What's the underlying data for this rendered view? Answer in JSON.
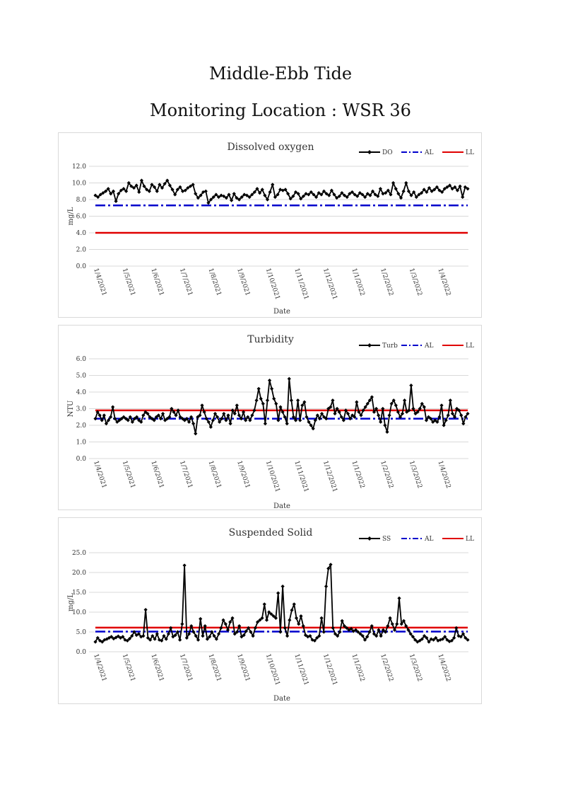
{
  "page": {
    "title": "Middle-Ebb Tide",
    "subtitle": "Monitoring Location : WSR 36"
  },
  "x_ticks": [
    "1/4/2021",
    "1/5/2021",
    "1/6/2021",
    "1/7/2021",
    "1/8/2021",
    "1/9/2021",
    "1/10/2021",
    "1/11/2021",
    "1/12/2021",
    "1/1/2022",
    "1/2/2022",
    "1/3/2022",
    "1/4/2022"
  ],
  "colors": {
    "data": "#000000",
    "al": "#0000cc",
    "ll": "#e00000",
    "grid": "#d9d9d9"
  },
  "chart_data": [
    {
      "type": "line",
      "title": "Dissolved oxygen",
      "xlabel": "Date",
      "ylabel": "mg/L",
      "ylim": [
        0,
        12
      ],
      "yticks": [
        "0.0",
        "2.0",
        "4.0",
        "6.0",
        "8.0",
        "10.0",
        "12.0"
      ],
      "grid": true,
      "legend": "top-right",
      "x_range": [
        "1/4/2021",
        "30/4/2022"
      ],
      "series": [
        {
          "name": "DO",
          "style": "black line with diamond markers",
          "values": [
            8.5,
            8.3,
            8.6,
            8.8,
            9.0,
            9.3,
            8.7,
            9.0,
            7.8,
            8.7,
            9.1,
            9.3,
            9.0,
            10.0,
            9.6,
            9.4,
            9.7,
            8.9,
            10.3,
            9.6,
            9.2,
            9.0,
            9.8,
            9.5,
            9.0,
            9.8,
            9.4,
            9.9,
            10.3,
            9.7,
            9.2,
            8.6,
            9.2,
            9.5,
            9.0,
            9.1,
            9.4,
            9.6,
            9.8,
            8.7,
            8.2,
            8.5,
            8.9,
            9.0,
            7.6,
            8.0,
            8.3,
            8.6,
            8.3,
            8.5,
            8.4,
            8.2,
            8.6,
            7.9,
            8.7,
            8.2,
            8.0,
            8.3,
            8.6,
            8.5,
            8.3,
            8.6,
            8.9,
            9.3,
            8.8,
            9.2,
            8.5,
            8.0,
            8.9,
            9.8,
            8.3,
            8.6,
            9.2,
            9.1,
            9.2,
            8.7,
            8.1,
            8.4,
            8.9,
            8.7,
            8.1,
            8.4,
            8.7,
            8.6,
            8.9,
            8.6,
            8.3,
            8.8,
            8.6,
            9.0,
            8.7,
            8.5,
            9.1,
            8.6,
            8.2,
            8.4,
            8.8,
            8.5,
            8.3,
            8.7,
            8.9,
            8.6,
            8.4,
            8.8,
            8.6,
            8.3,
            8.7,
            8.5,
            9.0,
            8.6,
            8.4,
            9.3,
            8.7,
            8.8,
            9.1,
            8.6,
            10.0,
            9.3,
            8.7,
            8.2,
            9.0,
            10.0,
            9.0,
            8.5,
            8.9,
            8.3,
            8.6,
            8.8,
            9.2,
            8.9,
            9.4,
            9.0,
            9.2,
            9.5,
            9.1,
            8.9,
            9.3,
            9.5,
            9.7,
            9.3,
            9.5,
            9.1,
            9.6,
            8.3,
            9.5,
            9.3
          ]
        },
        {
          "name": "AL",
          "style": "blue dash-dot",
          "values": [
            7.3,
            7.3
          ]
        },
        {
          "name": "LL",
          "style": "red solid",
          "values": [
            4.0,
            4.0
          ]
        }
      ]
    },
    {
      "type": "line",
      "title": "Turbidity",
      "xlabel": "Date",
      "ylabel": "NTU",
      "ylim": [
        0,
        6
      ],
      "yticks": [
        "0.0",
        "1.0",
        "2.0",
        "3.0",
        "4.0",
        "5.0",
        "6.0"
      ],
      "grid": true,
      "legend": "top-right",
      "x_range": [
        "1/4/2021",
        "30/4/2022"
      ],
      "series": [
        {
          "name": "Turb",
          "style": "black line with diamond markers",
          "values": [
            2.4,
            2.8,
            2.6,
            2.3,
            2.6,
            2.1,
            2.3,
            2.5,
            3.1,
            2.4,
            2.2,
            2.3,
            2.4,
            2.5,
            2.4,
            2.3,
            2.5,
            2.2,
            2.4,
            2.5,
            2.3,
            2.2,
            2.6,
            2.8,
            2.7,
            2.5,
            2.4,
            2.3,
            2.5,
            2.6,
            2.4,
            2.7,
            2.3,
            2.4,
            2.5,
            3.0,
            2.8,
            2.6,
            2.9,
            2.5,
            2.4,
            2.3,
            2.4,
            2.2,
            2.5,
            2.1,
            1.5,
            2.5,
            2.6,
            3.2,
            2.8,
            2.4,
            2.2,
            1.9,
            2.3,
            2.7,
            2.5,
            2.2,
            2.4,
            2.7,
            2.3,
            2.6,
            2.1,
            2.9,
            2.7,
            3.2,
            2.6,
            2.4,
            2.8,
            2.3,
            2.5,
            2.3,
            2.6,
            2.9,
            3.5,
            4.2,
            3.6,
            3.3,
            2.1,
            3.5,
            4.7,
            4.2,
            3.6,
            3.3,
            2.3,
            3.1,
            2.8,
            2.5,
            2.1,
            4.8,
            3.5,
            2.5,
            2.3,
            3.5,
            2.3,
            3.2,
            3.4,
            2.5,
            2.2,
            2.0,
            1.8,
            2.3,
            2.6,
            2.4,
            2.7,
            2.5,
            2.4,
            3.0,
            3.1,
            3.5,
            2.7,
            3.0,
            2.8,
            2.5,
            2.3,
            2.9,
            2.7,
            2.4,
            2.6,
            2.5,
            3.4,
            2.8,
            2.6,
            2.9,
            3.1,
            3.3,
            3.5,
            3.7,
            2.8,
            3.0,
            2.6,
            2.2,
            3.0,
            2.0,
            1.6,
            2.6,
            3.3,
            3.5,
            3.2,
            2.8,
            2.5,
            2.7,
            3.5,
            2.8,
            2.9,
            4.4,
            3.0,
            2.7,
            2.8,
            3.0,
            3.3,
            3.1,
            2.3,
            2.5,
            2.4,
            2.2,
            2.3,
            2.2,
            2.5,
            3.2,
            2.0,
            2.3,
            2.6,
            3.5,
            2.7,
            2.5,
            3.0,
            2.9,
            2.6,
            2.1,
            2.5,
            2.7
          ]
        },
        {
          "name": "AL",
          "style": "blue dash-dot",
          "values": [
            2.4,
            2.4
          ]
        },
        {
          "name": "LL",
          "style": "red solid",
          "values": [
            2.9,
            2.9
          ]
        }
      ]
    },
    {
      "type": "line",
      "title": "Suspended Solid",
      "xlabel": "Date",
      "ylabel": "mg/L",
      "ylim": [
        0,
        25
      ],
      "yticks": [
        "0.0",
        "5.0",
        "10.0",
        "15.0",
        "20.0",
        "25.0"
      ],
      "grid": true,
      "legend": "top-right",
      "x_range": [
        "1/4/2021",
        "30/4/2022"
      ],
      "series": [
        {
          "name": "SS",
          "style": "black line with diamond markers",
          "values": [
            2.5,
            3.5,
            2.8,
            2.5,
            3.0,
            3.2,
            3.5,
            3.8,
            3.3,
            3.6,
            3.9,
            3.5,
            3.8,
            3.0,
            2.8,
            3.3,
            4.0,
            5.0,
            4.2,
            4.5,
            3.8,
            4.0,
            10.6,
            3.5,
            3.0,
            4.0,
            3.2,
            4.5,
            3.0,
            2.8,
            4.0,
            3.2,
            4.5,
            6.0,
            3.8,
            4.2,
            5.0,
            3.0,
            7.0,
            21.8,
            3.5,
            4.5,
            6.5,
            5.0,
            4.0,
            3.0,
            8.3,
            4.0,
            6.5,
            3.2,
            3.8,
            5.0,
            4.0,
            3.2,
            4.5,
            6.0,
            8.0,
            7.0,
            5.5,
            7.5,
            8.5,
            4.5,
            5.0,
            6.5,
            3.8,
            4.2,
            5.2,
            6.0,
            5.0,
            4.0,
            6.0,
            7.5,
            8.0,
            8.5,
            12.0,
            8.0,
            10.0,
            9.5,
            9.0,
            8.5,
            14.8,
            5.0,
            16.5,
            6.0,
            4.0,
            8.0,
            10.5,
            12.0,
            8.5,
            7.0,
            9.0,
            6.5,
            4.2,
            3.8,
            4.0,
            3.0,
            2.8,
            3.5,
            4.0,
            8.5,
            5.0,
            16.5,
            21.0,
            22.0,
            6.0,
            4.5,
            4.0,
            5.0,
            7.8,
            6.5,
            6.0,
            5.5,
            5.8,
            5.2,
            5.5,
            5.0,
            4.5,
            4.0,
            3.0,
            3.8,
            5.0,
            6.5,
            4.5,
            4.0,
            5.5,
            4.0,
            5.5,
            5.0,
            6.5,
            8.5,
            7.0,
            5.5,
            7.0,
            13.5,
            7.0,
            7.8,
            6.5,
            5.5,
            4.5,
            3.8,
            3.0,
            2.5,
            2.8,
            3.2,
            4.0,
            3.5,
            2.5,
            3.2,
            3.0,
            3.5,
            2.8,
            3.0,
            3.2,
            3.8,
            3.0,
            2.6,
            2.8,
            3.5,
            6.0,
            4.0,
            3.8,
            4.5,
            3.5,
            3.0
          ]
        },
        {
          "name": "AL",
          "style": "blue dash-dot",
          "values": [
            5.1,
            5.1
          ]
        },
        {
          "name": "LL",
          "style": "red solid",
          "values": [
            6.1,
            6.1
          ]
        }
      ]
    }
  ]
}
